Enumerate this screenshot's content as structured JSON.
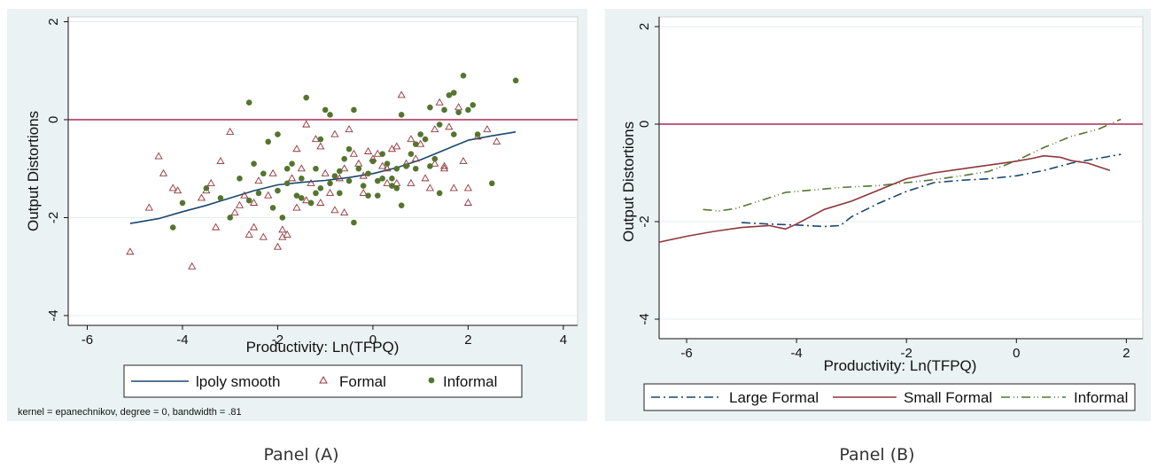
{
  "colors": {
    "panel_bg": "#eaf2f3",
    "plot_bg": "#ffffff",
    "grid": "#e6ecee",
    "ref_line": "#990033",
    "navy": "#1a476f",
    "maroon": "#90353b",
    "olive": "#55752f",
    "formal_marker": "#90353b",
    "informal_marker": "#55752f"
  },
  "captions": {
    "a": "Panel (A)",
    "b": "Panel (B)"
  },
  "chart_data": [
    {
      "id": "panel-a",
      "type": "scatter",
      "xlabel": "Productivity: Ln(TFPQ)",
      "ylabel": "Output Distortions",
      "xlim": [
        -6.4,
        4.3
      ],
      "ylim": [
        -4.2,
        2.1
      ],
      "xticks": [
        -6,
        -4,
        -2,
        0,
        2,
        4
      ],
      "yticks": [
        2,
        0,
        -2,
        -4
      ],
      "hline": 0,
      "grid": true,
      "legend_position": "bottom",
      "note": "kernel = epanechnikov, degree = 0, bandwidth = .81",
      "series": [
        {
          "name": "lpoly smooth",
          "kind": "line",
          "color": "#1a476f",
          "x": [
            -5.1,
            -4.5,
            -4.0,
            -3.5,
            -3.0,
            -2.5,
            -2.0,
            -1.5,
            -1.0,
            -0.5,
            0.0,
            0.5,
            1.0,
            1.5,
            2.0,
            2.5,
            3.0
          ],
          "y": [
            -2.12,
            -2.02,
            -1.88,
            -1.75,
            -1.6,
            -1.45,
            -1.33,
            -1.28,
            -1.24,
            -1.18,
            -1.1,
            -0.98,
            -0.82,
            -0.62,
            -0.42,
            -0.33,
            -0.25
          ]
        },
        {
          "name": "Formal",
          "kind": "marker",
          "marker": "triangle",
          "color": "#90353b",
          "x": [
            -5.1,
            -4.7,
            -4.5,
            -4.4,
            -4.2,
            -4.1,
            -3.8,
            -3.6,
            -3.4,
            -3.3,
            -3.2,
            -3.0,
            -2.9,
            -2.7,
            -2.6,
            -2.5,
            -2.4,
            -2.3,
            -2.2,
            -2.1,
            -2.0,
            -1.9,
            -1.8,
            -1.7,
            -1.6,
            -1.5,
            -1.4,
            -1.3,
            -1.2,
            -1.1,
            -1.0,
            -0.9,
            -0.8,
            -0.7,
            -0.6,
            -0.5,
            -0.4,
            -0.3,
            -0.2,
            -0.1,
            0.0,
            0.1,
            0.2,
            0.3,
            0.4,
            0.5,
            0.6,
            0.7,
            0.8,
            0.9,
            1.0,
            1.1,
            1.2,
            1.3,
            1.4,
            1.5,
            1.6,
            1.7,
            1.8,
            1.9,
            2.0,
            2.2,
            2.4,
            2.6,
            -1.4,
            -0.8,
            -0.2,
            0.3,
            0.8,
            1.3,
            -2.8,
            -1.9,
            -1.1,
            0.5,
            1.5,
            2.0,
            -3.5,
            -2.5,
            -1.6,
            -0.6
          ],
          "y": [
            -2.7,
            -1.8,
            -0.75,
            -1.1,
            -1.4,
            -1.45,
            -3.0,
            -1.6,
            -1.3,
            -2.2,
            -0.85,
            -0.25,
            -1.9,
            -1.55,
            -2.35,
            -2.2,
            -1.25,
            -2.4,
            -1.55,
            -1.1,
            -2.6,
            -2.25,
            -2.35,
            -1.2,
            -0.6,
            -1.0,
            -0.1,
            -1.3,
            -0.4,
            -1.7,
            -1.1,
            -1.5,
            -0.3,
            -1.2,
            -1.0,
            -0.2,
            -0.7,
            -0.9,
            -1.15,
            -0.65,
            -0.8,
            -0.7,
            -0.95,
            -1.3,
            -0.6,
            -1.3,
            0.5,
            -0.9,
            -0.4,
            -0.8,
            -0.5,
            -1.2,
            -1.4,
            -0.2,
            0.35,
            -1.0,
            -0.15,
            -1.4,
            0.25,
            -0.85,
            -1.7,
            -0.35,
            -0.2,
            -0.45,
            -1.65,
            -1.85,
            -1.5,
            -1.0,
            -1.3,
            -0.9,
            -1.75,
            -2.4,
            -0.55,
            -0.55,
            -0.95,
            -1.4,
            -1.45,
            -1.7,
            -1.8,
            -1.9
          ]
        },
        {
          "name": "Informal",
          "kind": "marker",
          "marker": "circle",
          "color": "#55752f",
          "x": [
            -4.2,
            -4.0,
            -3.5,
            -3.2,
            -3.0,
            -2.8,
            -2.6,
            -2.5,
            -2.4,
            -2.3,
            -2.2,
            -2.1,
            -2.0,
            -1.9,
            -1.8,
            -1.7,
            -1.6,
            -1.5,
            -1.4,
            -1.3,
            -1.2,
            -1.1,
            -1.0,
            -0.9,
            -0.8,
            -0.7,
            -0.6,
            -0.5,
            -0.4,
            -0.3,
            -0.2,
            -0.1,
            0.0,
            0.1,
            0.2,
            0.3,
            0.4,
            0.5,
            0.6,
            0.7,
            0.8,
            0.9,
            1.0,
            1.1,
            1.2,
            1.3,
            1.4,
            1.5,
            1.6,
            1.7,
            1.8,
            1.9,
            2.0,
            2.1,
            2.2,
            2.5,
            3.0,
            -1.5,
            -1.1,
            -0.9,
            -0.4,
            0.2,
            0.5,
            0.9,
            1.4,
            -2.0,
            -1.3,
            -0.7,
            -0.1,
            0.4,
            1.2,
            1.7,
            -2.6,
            -1.8,
            -1.2,
            -0.5,
            0.1,
            0.6
          ],
          "y": [
            -2.2,
            -1.7,
            -1.4,
            -1.6,
            -2.0,
            -1.2,
            0.35,
            -0.9,
            -1.5,
            -1.1,
            -0.45,
            -1.8,
            -1.45,
            -2.0,
            -1.3,
            -0.9,
            -1.55,
            -1.2,
            0.45,
            -1.7,
            -1.0,
            -1.4,
            0.2,
            -1.3,
            -1.15,
            -1.5,
            -0.8,
            -1.25,
            0.2,
            -1.0,
            -1.35,
            -1.1,
            -0.85,
            -1.55,
            -0.7,
            -0.9,
            -1.2,
            -1.0,
            0.1,
            -0.95,
            -0.7,
            -1.0,
            -0.3,
            -0.4,
            0.25,
            -0.8,
            -0.1,
            0.2,
            0.5,
            -0.3,
            0.15,
            0.9,
            0.2,
            0.3,
            -0.3,
            -1.3,
            0.8,
            -1.6,
            -0.4,
            0.1,
            -2.1,
            -1.2,
            -1.4,
            -0.5,
            -1.5,
            -0.3,
            -1.7,
            -1.05,
            -1.55,
            -1.35,
            -0.95,
            0.55,
            -1.65,
            -1.0,
            -1.5,
            -0.6,
            -1.25,
            -1.75
          ]
        }
      ]
    },
    {
      "id": "panel-b",
      "type": "line",
      "xlabel": "Productivity: Ln(TFPQ)",
      "ylabel": "Output Distortions",
      "xlim": [
        -6.5,
        2.3
      ],
      "ylim": [
        -4.4,
        2.2
      ],
      "xticks": [
        -6,
        -4,
        -2,
        0,
        2
      ],
      "yticks": [
        2,
        0,
        -2,
        -4
      ],
      "hline": 0,
      "grid": true,
      "legend_position": "bottom",
      "series": [
        {
          "name": "Large Formal",
          "color": "#1a476f",
          "dash": "10,4,2,4",
          "x": [
            -5.0,
            -4.5,
            -4.0,
            -3.5,
            -3.2,
            -3.0,
            -2.5,
            -2.0,
            -1.5,
            -1.0,
            -0.5,
            0.0,
            0.5,
            1.0,
            1.5,
            1.9
          ],
          "y": [
            -2.02,
            -2.05,
            -2.07,
            -2.1,
            -2.08,
            -1.9,
            -1.62,
            -1.38,
            -1.2,
            -1.15,
            -1.12,
            -1.06,
            -0.95,
            -0.8,
            -0.7,
            -0.62
          ]
        },
        {
          "name": "Small Formal",
          "color": "#90353b",
          "dash": "",
          "x": [
            -6.5,
            -6.0,
            -5.5,
            -5.0,
            -4.5,
            -4.2,
            -4.0,
            -3.5,
            -3.0,
            -2.5,
            -2.0,
            -1.5,
            -1.0,
            -0.5,
            0.0,
            0.3,
            0.5,
            0.8,
            1.0,
            1.3,
            1.7
          ],
          "y": [
            -2.42,
            -2.3,
            -2.2,
            -2.12,
            -2.08,
            -2.15,
            -2.05,
            -1.75,
            -1.58,
            -1.35,
            -1.12,
            -1.0,
            -0.92,
            -0.84,
            -0.76,
            -0.7,
            -0.65,
            -0.68,
            -0.75,
            -0.8,
            -0.95
          ]
        },
        {
          "name": "Informal",
          "color": "#55752f",
          "dash": "10,4,1,3,1,4",
          "x": [
            -5.7,
            -5.4,
            -5.1,
            -4.6,
            -4.2,
            -3.8,
            -3.2,
            -2.5,
            -2.0,
            -1.5,
            -1.0,
            -0.5,
            0.0,
            0.5,
            1.0,
            1.5,
            1.9
          ],
          "y": [
            -1.75,
            -1.78,
            -1.73,
            -1.55,
            -1.4,
            -1.36,
            -1.3,
            -1.26,
            -1.2,
            -1.14,
            -1.06,
            -0.97,
            -0.75,
            -0.48,
            -0.25,
            -0.1,
            0.1
          ]
        }
      ]
    }
  ]
}
